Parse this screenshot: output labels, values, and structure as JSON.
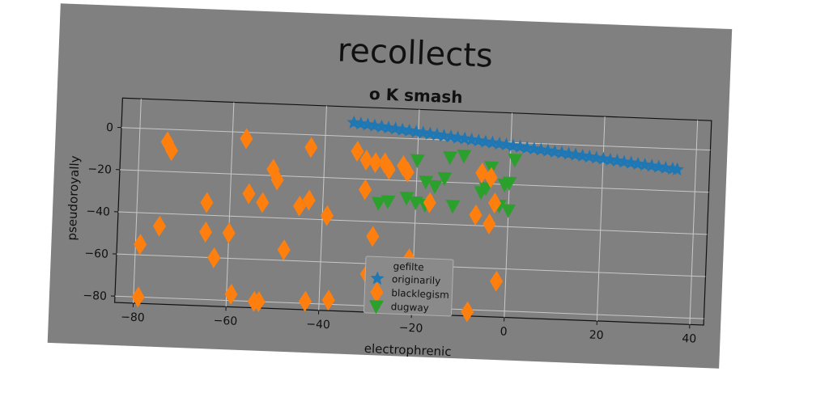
{
  "chart_data": {
    "type": "scatter",
    "title": "recollects",
    "subtitle": "o K smash",
    "xlabel": "electrophrenic",
    "ylabel": "pseudoroyally",
    "xlim": [
      -84,
      43
    ],
    "ylim": [
      -83,
      14
    ],
    "xticks": [
      -80,
      -60,
      -40,
      -20,
      0,
      20,
      40
    ],
    "yticks": [
      0,
      -20,
      -40,
      -60,
      -80
    ],
    "grid": true,
    "legend": {
      "title": "gefilte",
      "placement": "lower-center"
    },
    "series": [
      {
        "name": "originarily",
        "marker": "star",
        "color": "#1f77b4",
        "x": [
          -34,
          -32.5,
          -31,
          -29.5,
          -28,
          -26.5,
          -25,
          -23.5,
          -22,
          -20.5,
          -19,
          -17.5,
          -16,
          -14.5,
          -13,
          -11.5,
          -10,
          -8.5,
          -7,
          -5.5,
          -4,
          -2.5,
          -1,
          0.5,
          2,
          3.5,
          5,
          6.5,
          8,
          9.5,
          11,
          12.5,
          14,
          15.5,
          17,
          18.5,
          20,
          21.5,
          23,
          24.5,
          26,
          27.5,
          29,
          30.5,
          32,
          33.5,
          35,
          36
        ],
        "y": [
          6.5,
          6.1,
          5.8,
          5.4,
          5.1,
          4.7,
          4.4,
          4,
          3.7,
          3.3,
          3,
          2.6,
          2.3,
          1.9,
          1.6,
          1.2,
          0.9,
          0.5,
          0.2,
          -0.2,
          -0.5,
          -0.9,
          -1.2,
          -1.6,
          -1.9,
          -2.3,
          -2.6,
          -3,
          -3.3,
          -3.7,
          -4,
          -4.4,
          -4.7,
          -5.1,
          -5.4,
          -5.8,
          -6.1,
          -6.5,
          -6.8,
          -7.2,
          -7.5,
          -7.9,
          -8.2,
          -8.6,
          -8.9,
          -9.3,
          -9.6,
          -9.8
        ]
      },
      {
        "name": "blacklegism",
        "marker": "diamond",
        "color": "#ff7f0e",
        "x": [
          -74,
          -73,
          -57,
          -51,
          -50,
          -43,
          -33,
          -31,
          -29,
          -27,
          -26,
          -23,
          -22,
          -31,
          -17,
          -6,
          -4,
          -3,
          -65,
          -56,
          -53,
          -45,
          -43,
          -39,
          -75,
          -79,
          -65,
          -60,
          -63,
          -48,
          -29,
          -21,
          -2,
          -59,
          -54,
          -53,
          -43,
          -38,
          -30,
          -22,
          -7,
          -4,
          -79,
          -8,
          -15
        ],
        "y": [
          -6,
          -10,
          -3,
          -17,
          -22,
          -6,
          -7,
          -11,
          -12,
          -12,
          -15,
          -13,
          -16,
          -25,
          -30,
          -15,
          -17,
          -29,
          -34,
          -29,
          -33,
          -34,
          -31,
          -38,
          -46,
          -55,
          -48,
          -48,
          -60,
          -55,
          -47,
          -57,
          -66,
          -77,
          -80,
          -80,
          -79,
          -78,
          -65,
          -61,
          -35,
          -39,
          -80,
          -81,
          -78
        ]
      },
      {
        "name": "dugway",
        "marker": "triangle-down",
        "color": "#2ca02c",
        "x": [
          -20,
          -13,
          -10,
          -4,
          1,
          -14,
          -16,
          -18,
          -6,
          -1,
          0,
          -28,
          -26,
          -20,
          -18,
          -12,
          -2,
          0,
          -5,
          -22
        ],
        "y": [
          -10,
          -8,
          -7,
          -12,
          -8,
          -18,
          -22,
          -20,
          -24,
          -20,
          -19,
          -31,
          -30,
          -30,
          -31,
          -31,
          -30,
          -32,
          -22,
          -28
        ]
      }
    ]
  }
}
